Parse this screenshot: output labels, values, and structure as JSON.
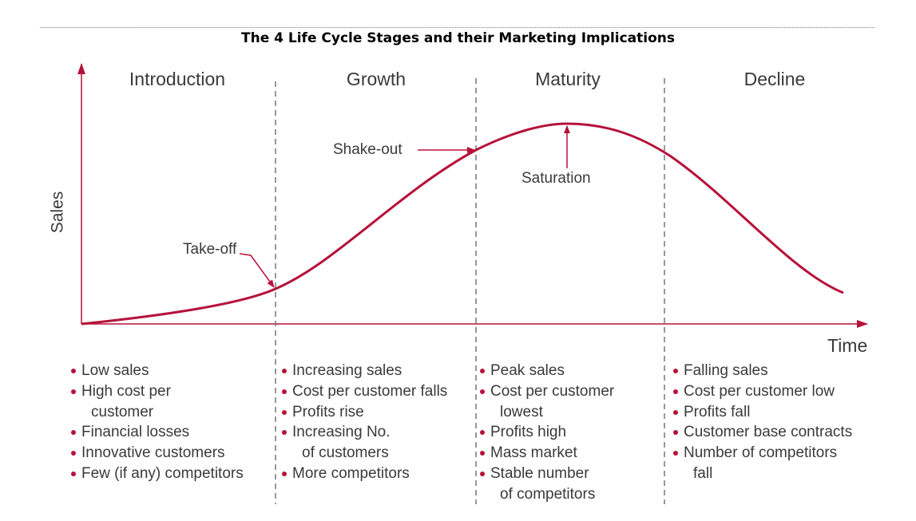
{
  "title": "The 4 Life Cycle Stages and their Marketing Implications",
  "axes": {
    "y_label": "Sales",
    "x_label": "Time"
  },
  "colors": {
    "curve": "#b5123a",
    "text": "#3a3a3a",
    "divider": "#777777"
  },
  "stages": [
    {
      "name": "Introduction",
      "items": [
        [
          "Low sales"
        ],
        [
          "High cost per",
          "customer"
        ],
        [
          "Financial losses"
        ],
        [
          "Innovative customers"
        ],
        [
          "Few (if any) competitors"
        ]
      ]
    },
    {
      "name": "Growth",
      "items": [
        [
          "Increasing sales"
        ],
        [
          "Cost per customer falls"
        ],
        [
          "Profits rise"
        ],
        [
          "Increasing No.",
          "of customers"
        ],
        [
          "More competitors"
        ]
      ]
    },
    {
      "name": "Maturity",
      "items": [
        [
          "Peak sales"
        ],
        [
          "Cost per customer",
          "lowest"
        ],
        [
          "Profits high"
        ],
        [
          "Mass market"
        ],
        [
          "Stable number",
          "of competitors"
        ]
      ]
    },
    {
      "name": "Decline",
      "items": [
        [
          "Falling sales"
        ],
        [
          "Cost per customer low"
        ],
        [
          "Profits fall"
        ],
        [
          "Customer base contracts"
        ],
        [
          "Number of competitors",
          "fall"
        ]
      ]
    }
  ],
  "annotations": {
    "take_off": "Take-off",
    "shake_out": "Shake-out",
    "saturation": "Saturation"
  }
}
